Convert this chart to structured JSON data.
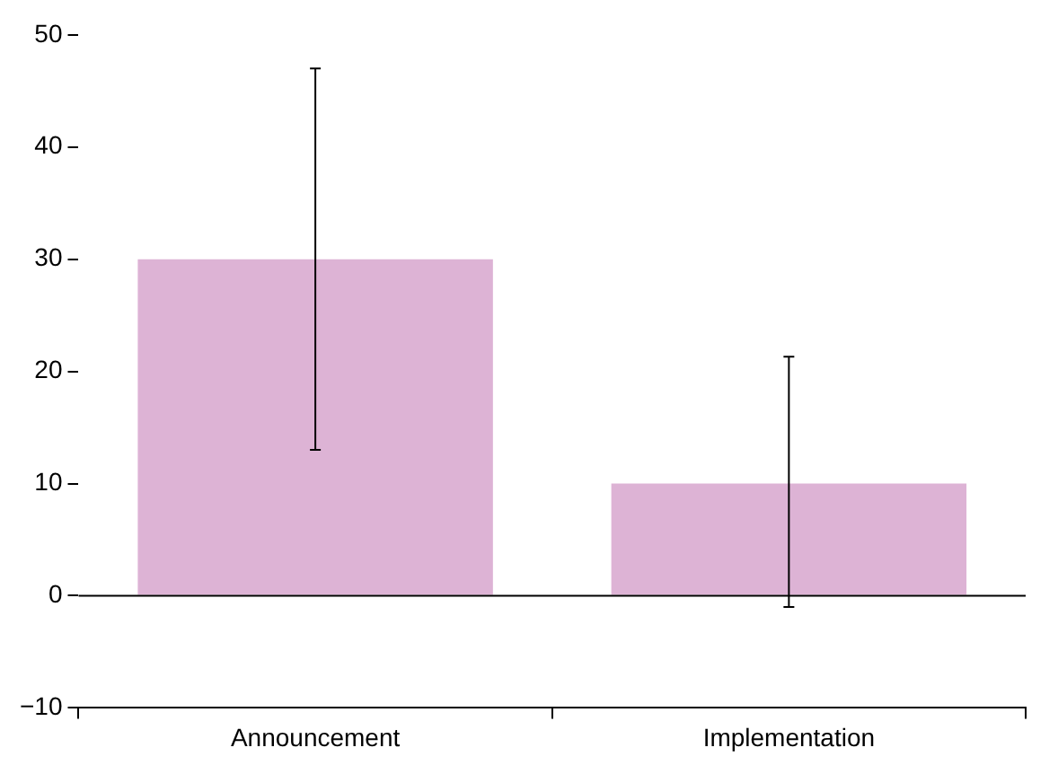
{
  "chart_data": {
    "type": "bar",
    "categories": [
      "Announcement",
      "Implementation"
    ],
    "values": [
      30,
      10
    ],
    "errors": [
      [
        13,
        47
      ],
      [
        -1,
        21.3
      ]
    ],
    "color": "#ddb3d5",
    "ylim": [
      -10,
      50
    ],
    "yticks": [
      {
        "value": -10,
        "label": "−10"
      },
      0,
      10,
      20,
      30,
      40,
      50
    ],
    "ref_lines": [
      {
        "axis": "y",
        "value": 0,
        "color": "#000000"
      }
    ],
    "grid": false,
    "legend": false
  }
}
